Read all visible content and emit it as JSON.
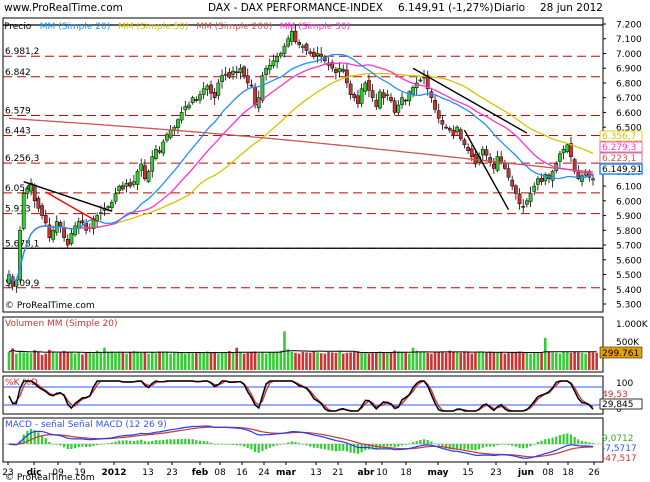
{
  "header": {
    "www": "www.ProRealTime.com",
    "title": "DAX - DAX PERFORMANCE-INDEX",
    "price": "6.149,91 (-1,27%)",
    "period": "Diario",
    "date": "28 jun 2012"
  },
  "watermarks": {
    "main": "© ProRealTime.com",
    "bottom": "© ProRealTime.com"
  },
  "colors": {
    "up": "#33cc33",
    "down": "#cc3333",
    "ma20": "#1e90ff",
    "ma50": "#d4c400",
    "ma200": "#cc5555",
    "ma30": "#ff33cc",
    "grid": "#cc0000",
    "volume": "#e6a000",
    "k": "#000000",
    "d": "#cc3333",
    "macd": "#1e3cff",
    "signal": "#cc3333",
    "hist": "#33cc33"
  },
  "chart_data": [
    {
      "type": "candlestick",
      "title": "DAX - DAX PERFORMANCE-INDEX",
      "legend": [
        "Precio",
        "MM (Simple 20)",
        "MM (Simple 50)",
        "MM (Simple 200)",
        "MM (Simple 30)"
      ],
      "y_ticks": [
        "7.200",
        "7.100",
        "7.000",
        "6.900",
        "6.800",
        "6.700",
        "6.600",
        "6.500",
        "6.400",
        "6.300",
        "6.200",
        "6.100",
        "6.000",
        "5.900",
        "5.800",
        "5.700",
        "5.600",
        "5.500",
        "5.400",
        "5.300"
      ],
      "ylim": [
        5300,
        7200
      ],
      "x_labels": [
        "23",
        "dic",
        "09",
        "19",
        "2012",
        "13",
        "23",
        "feb",
        "08",
        "16",
        "24",
        "mar",
        "13",
        "21",
        "abr",
        "10",
        "18",
        "may",
        "15",
        "23",
        "jun",
        "08",
        "18",
        "26"
      ],
      "h_levels": [
        {
          "label": "6.981,2",
          "value": 6981.2
        },
        {
          "label": "6.842",
          "value": 6842
        },
        {
          "label": "6.579",
          "value": 6579
        },
        {
          "label": "6.443",
          "value": 6443
        },
        {
          "label": "6.256,3",
          "value": 6256.3
        },
        {
          "label": "6.054",
          "value": 6054
        },
        {
          "label": "5.913",
          "value": 5913
        },
        {
          "label": "5.678,1",
          "value": 5678.1
        },
        {
          "label": "5.409,9",
          "value": 5409.9
        }
      ],
      "price_labels": [
        {
          "label": "6.356,7",
          "value": 6356.7,
          "color": "#d4c400"
        },
        {
          "label": "6.279,3",
          "value": 6279.3,
          "color": "#ff33cc"
        },
        {
          "label": "6.223,1",
          "value": 6223.1,
          "color": "#cc5555"
        },
        {
          "label": "6.149,91",
          "value": 6149.91,
          "color": "#1e90ff"
        }
      ],
      "closes": [
        5500,
        5420,
        5460,
        5800,
        6050,
        6080,
        6120,
        6000,
        5950,
        5900,
        5850,
        5750,
        5800,
        5860,
        5830,
        5750,
        5700,
        5780,
        5830,
        5860,
        5850,
        5800,
        5820,
        5880,
        5900,
        5920,
        5950,
        5960,
        5990,
        6050,
        6100,
        6080,
        6120,
        6100,
        6130,
        6200,
        6250,
        6150,
        6200,
        6300,
        6350,
        6330,
        6400,
        6450,
        6480,
        6500,
        6550,
        6600,
        6640,
        6650,
        6700,
        6680,
        6720,
        6760,
        6780,
        6730,
        6700,
        6800,
        6850,
        6860,
        6840,
        6880,
        6870,
        6900,
        6850,
        6800,
        6780,
        6650,
        6700,
        6850,
        6900,
        6920,
        6950,
        6980,
        7000,
        7050,
        7100,
        7150,
        7080,
        7060,
        7050,
        7020,
        7000,
        6980,
        7000,
        6980,
        6950,
        6920,
        6900,
        6870,
        6900,
        6880,
        6800,
        6720,
        6700,
        6660,
        6760,
        6800,
        6750,
        6700,
        6640,
        6740,
        6700,
        6720,
        6680,
        6600,
        6650,
        6700,
        6680,
        6740,
        6770,
        6800,
        6820,
        6840,
        6760,
        6700,
        6620,
        6560,
        6520,
        6500,
        6480,
        6450,
        6500,
        6420,
        6380,
        6340,
        6300,
        6250,
        6300,
        6350,
        6310,
        6260,
        6220,
        6300,
        6260,
        6220,
        6160,
        6100,
        6050,
        5980,
        5960,
        6000,
        6050,
        6100,
        6150,
        6130,
        6180,
        6150,
        6200,
        6250,
        6320,
        6350,
        6380,
        6300,
        6200,
        6150,
        6170,
        6200,
        6160,
        6150
      ]
    },
    {
      "type": "bar",
      "title": "Volumen MM (Simple 20)",
      "y_ticks": [
        "1.000K",
        "500K"
      ],
      "last_label": "299.761",
      "ylim": [
        0,
        1000000
      ],
      "values": [
        420,
        500,
        380,
        440,
        410,
        400,
        390,
        460,
        430,
        350,
        380,
        470,
        420,
        390,
        400,
        440,
        410,
        420,
        380,
        400,
        360,
        420,
        410,
        390,
        450,
        400,
        520,
        410,
        430,
        390,
        400,
        410,
        380,
        420,
        440,
        430,
        400,
        420,
        380,
        410,
        390,
        430,
        410,
        420,
        380,
        400,
        420,
        400,
        380,
        410,
        390,
        420,
        410,
        400,
        430,
        410,
        420,
        380,
        400,
        420,
        440,
        410,
        520,
        410,
        380,
        400,
        420,
        430,
        390,
        400,
        380,
        420,
        410,
        430,
        450,
        900,
        480,
        420,
        400,
        380,
        420,
        410,
        400,
        430,
        410,
        390,
        380,
        420,
        410,
        400,
        420,
        380,
        400,
        410,
        420,
        440,
        410,
        400,
        380,
        420,
        410,
        430,
        400,
        410,
        420,
        450,
        430,
        410,
        400,
        380,
        520,
        450,
        430,
        420,
        400,
        380,
        420,
        410,
        430,
        400,
        450,
        420,
        410,
        400,
        420,
        410,
        380,
        400,
        420,
        410,
        400,
        430,
        410,
        400,
        420,
        380,
        400,
        410,
        420,
        430,
        410,
        400,
        380,
        420,
        410,
        400,
        750,
        430,
        410,
        400,
        380,
        420,
        410,
        400,
        430,
        410,
        400,
        380,
        420,
        410,
        400
      ]
    },
    {
      "type": "line",
      "title": "%K %D",
      "y_ticks": [
        "100",
        "0"
      ],
      "last_labels": [
        "49,53",
        "29,845"
      ],
      "ylim": [
        0,
        100
      ]
    },
    {
      "type": "line",
      "title": "MACD - señal Señal MACD (12 26 9)",
      "last_labels": [
        "9,0712",
        "-7,5717",
        "-47,517"
      ]
    }
  ]
}
